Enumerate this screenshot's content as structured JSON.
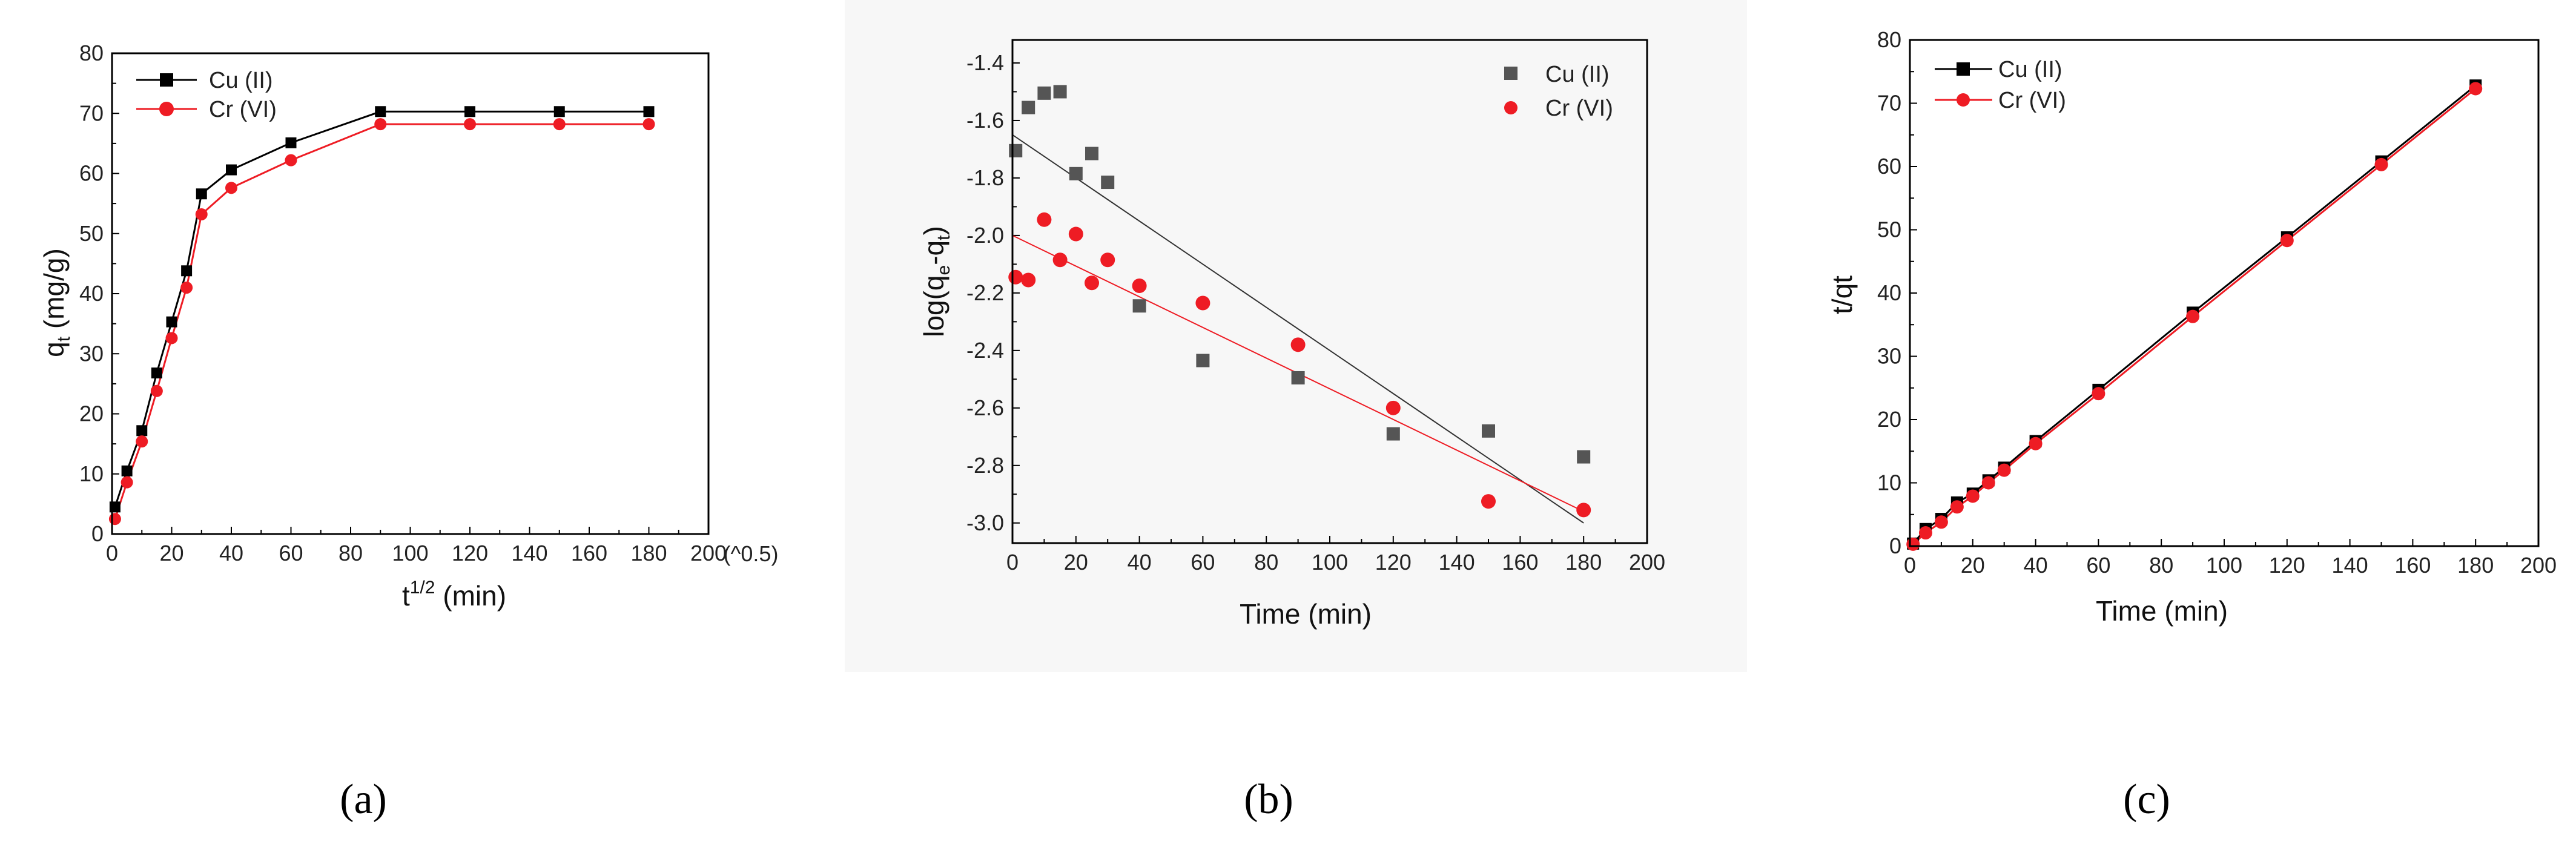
{
  "chart_data": [
    {
      "id": "a",
      "type": "line",
      "panel_label": "(a)",
      "x_unit_note": "(^0.5)",
      "xlabel_base": "t",
      "xlabel_sup": "1/2",
      "xlabel_rest": " (min)",
      "ylabel_base": "q",
      "ylabel_sub": "t",
      "ylabel_rest": " (mg/g)",
      "xlim": [
        0,
        200
      ],
      "ylim": [
        0,
        80
      ],
      "xticks": [
        0,
        20,
        40,
        60,
        80,
        100,
        120,
        140,
        160,
        180,
        200
      ],
      "yticks": [
        0,
        10,
        20,
        30,
        40,
        50,
        60,
        70,
        80
      ],
      "legend_position": "top-left",
      "colors": {
        "Cu (II)": "#000000",
        "Cr (VI)": "#ee1c24"
      },
      "series": [
        {
          "name": "Cu (II)",
          "marker": "square",
          "x": [
            1,
            5,
            10,
            15,
            20,
            25,
            30,
            40,
            60,
            90,
            120,
            150,
            180
          ],
          "y": [
            4.5,
            10.5,
            17.2,
            26.8,
            35.3,
            43.8,
            56.6,
            60.6,
            65.1,
            70.3,
            70.3,
            70.3,
            70.3
          ]
        },
        {
          "name": "Cr (VI)",
          "marker": "circle",
          "x": [
            1,
            5,
            10,
            15,
            20,
            25,
            30,
            40,
            60,
            90,
            120,
            150,
            180
          ],
          "y": [
            2.5,
            8.6,
            15.4,
            23.8,
            32.6,
            41.0,
            53.2,
            57.6,
            62.2,
            68.2,
            68.2,
            68.2,
            68.2
          ]
        }
      ]
    },
    {
      "id": "b",
      "type": "scatter",
      "panel_label": "(b)",
      "xlabel": "Time (min)",
      "ylabel_pre": "log(q",
      "ylabel_sub1": "e",
      "ylabel_mid": "-q",
      "ylabel_sub2": "t",
      "ylabel_post": ")",
      "xlim": [
        0,
        200
      ],
      "ylim": [
        -3.07,
        -1.32
      ],
      "xticks": [
        0,
        20,
        40,
        60,
        80,
        100,
        120,
        140,
        160,
        180,
        200
      ],
      "yticks": [
        -3.0,
        -2.8,
        -2.6,
        -2.4,
        -2.2,
        -2.0,
        -1.8,
        -1.6,
        -1.4
      ],
      "ytick_labels": [
        "-3.0",
        "-2.8",
        "-2.6",
        "-2.4",
        "-2.2",
        "-2.0",
        "-1.8",
        "-1.6",
        "-1.4"
      ],
      "legend_position": "top-right",
      "colors": {
        "Cu (II)": "#555555",
        "Cr (VI)": "#ee1c24",
        "Cu fit": "#333333",
        "Cr fit": "#ee1c24"
      },
      "series": [
        {
          "name": "Cu (II)",
          "marker": "square",
          "x": [
            1,
            5,
            10,
            15,
            20,
            25,
            30,
            40,
            60,
            90,
            120,
            150,
            180
          ],
          "y": [
            -1.705,
            -1.555,
            -1.505,
            -1.5,
            -1.785,
            -1.715,
            -1.815,
            -2.245,
            -2.435,
            -2.495,
            -2.69,
            -2.68,
            -2.77
          ],
          "fit": [
            [
              0,
              -1.65
            ],
            [
              180,
              -3.0
            ]
          ]
        },
        {
          "name": "Cr (VI)",
          "marker": "circle",
          "x": [
            1,
            5,
            10,
            15,
            20,
            25,
            30,
            40,
            60,
            90,
            120,
            150,
            180
          ],
          "y": [
            -2.145,
            -2.155,
            -1.945,
            -2.085,
            -1.995,
            -2.165,
            -2.085,
            -2.175,
            -2.235,
            -2.38,
            -2.6,
            -2.925,
            -2.955
          ],
          "fit": [
            [
              0,
              -2.0
            ],
            [
              180,
              -2.96
            ]
          ]
        }
      ]
    },
    {
      "id": "c",
      "type": "line",
      "panel_label": "(c)",
      "xlabel": "Time (min)",
      "ylabel": "t/qt",
      "xlim": [
        0,
        200
      ],
      "ylim": [
        0,
        80
      ],
      "xticks": [
        0,
        20,
        40,
        60,
        80,
        100,
        120,
        140,
        160,
        180,
        200
      ],
      "yticks": [
        0,
        10,
        20,
        30,
        40,
        50,
        60,
        70,
        80
      ],
      "legend_position": "top-left",
      "colors": {
        "Cu (II)": "#000000",
        "Cr (VI)": "#ee1c24"
      },
      "series": [
        {
          "name": "Cu (II)",
          "marker": "square",
          "x": [
            1,
            5,
            10,
            15,
            20,
            25,
            30,
            40,
            60,
            90,
            120,
            150,
            180
          ],
          "y": [
            0.4,
            2.7,
            4.3,
            6.9,
            8.3,
            10.4,
            12.4,
            16.6,
            24.7,
            36.9,
            48.8,
            60.8,
            72.8
          ]
        },
        {
          "name": "Cr (VI)",
          "marker": "circle",
          "x": [
            1,
            5,
            10,
            15,
            20,
            25,
            30,
            40,
            60,
            90,
            120,
            150,
            180
          ],
          "y": [
            0.3,
            2.1,
            3.8,
            6.2,
            7.9,
            10.0,
            12.0,
            16.2,
            24.1,
            36.3,
            48.3,
            60.3,
            72.3
          ]
        }
      ]
    }
  ]
}
